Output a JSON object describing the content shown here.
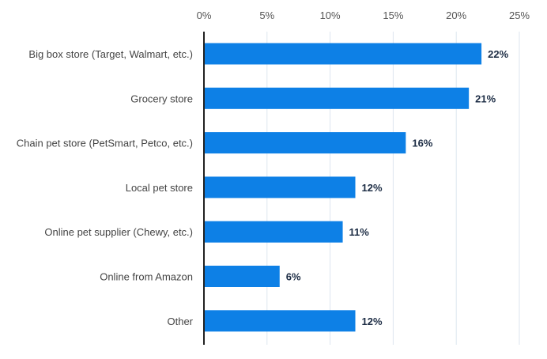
{
  "chart_data": {
    "type": "bar",
    "orientation": "horizontal",
    "title": "",
    "xlabel": "",
    "ylabel": "",
    "categories": [
      "Big box store (Target, Walmart, etc.)",
      "Grocery store",
      "Chain pet store (PetSmart, Petco, etc.)",
      "Local pet store",
      "Online pet supplier (Chewy, etc.)",
      "Online from Amazon",
      "Other"
    ],
    "values": [
      22,
      21,
      16,
      12,
      11,
      6,
      12
    ],
    "value_labels": [
      "22%",
      "21%",
      "16%",
      "12%",
      "11%",
      "6%",
      "12%"
    ],
    "xlim": [
      0,
      25
    ],
    "x_ticks": [
      0,
      5,
      10,
      15,
      20,
      25
    ],
    "x_tick_labels": [
      "0%",
      "5%",
      "10%",
      "15%",
      "20%",
      "25%"
    ],
    "x_axis_position": "top",
    "grid": true,
    "legend": "none",
    "colors": {
      "bar": "#0d80e6",
      "value_label": "#1c2c44",
      "category_label": "#444444",
      "tick_label": "#555555",
      "grid": "#dde6ef",
      "axis": "#222222"
    }
  }
}
